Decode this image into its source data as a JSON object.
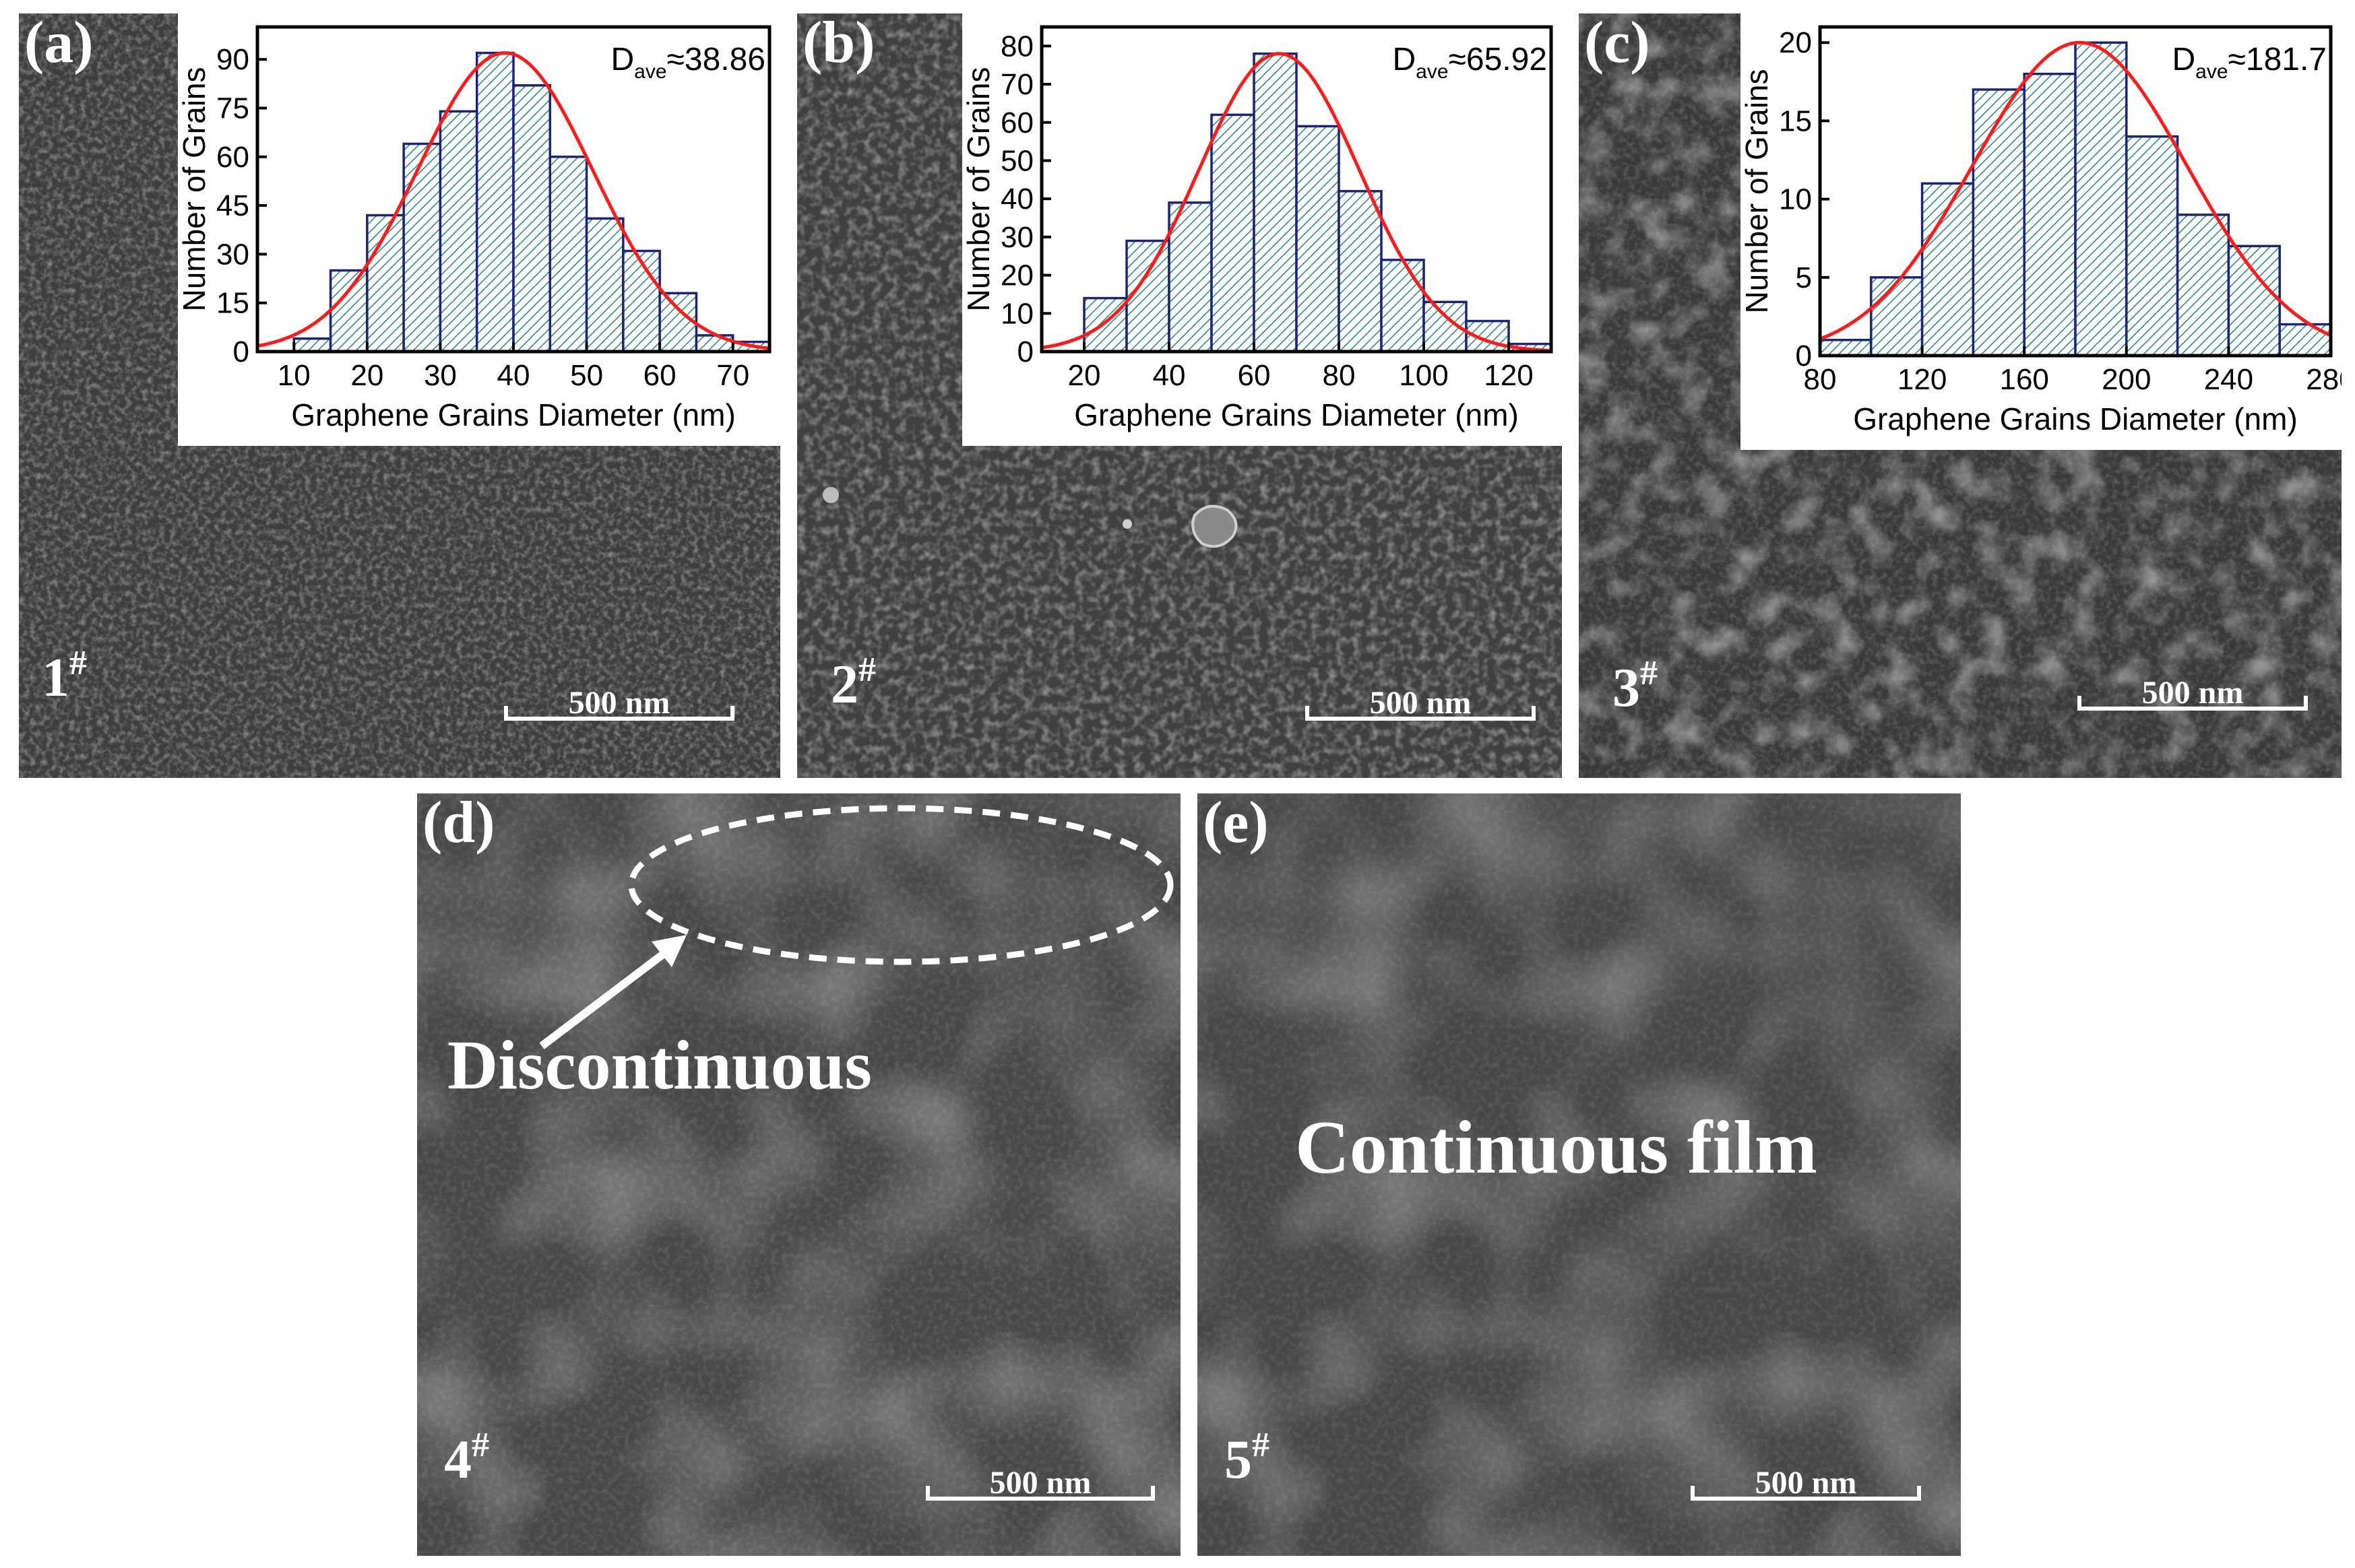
{
  "figure": {
    "panels": [
      {
        "letter": "(a)",
        "sample": "1",
        "sample_sup": "#",
        "scale_bar": "500 nm"
      },
      {
        "letter": "(b)",
        "sample": "2",
        "sample_sup": "#",
        "scale_bar": "500 nm"
      },
      {
        "letter": "(c)",
        "sample": "3",
        "sample_sup": "#",
        "scale_bar": "500 nm"
      },
      {
        "letter": "(d)",
        "sample": "4",
        "sample_sup": "#",
        "scale_bar": "500 nm",
        "annotation": "Discontinuous"
      },
      {
        "letter": "(e)",
        "sample": "5",
        "sample_sup": "#",
        "scale_bar": "500 nm",
        "annotation": "Continuous film"
      }
    ]
  },
  "colors": {
    "bar_edge": "#1a237e",
    "hatch": "#2a8c88",
    "fit_line": "#ff1a1a"
  },
  "chart_data": [
    {
      "type": "bar",
      "panel": "(a)",
      "title": "",
      "annotation_main": "D",
      "annotation_sub": "ave",
      "annotation_value": "≈38.86",
      "xlabel": "Graphene Grains Diameter (nm)",
      "ylabel": "Number of Grains",
      "xlim": [
        5,
        75
      ],
      "ylim": [
        0,
        100
      ],
      "xticks": [
        10,
        20,
        30,
        40,
        50,
        60,
        70
      ],
      "yticks": [
        0,
        15,
        30,
        45,
        60,
        75,
        90
      ],
      "bin_width": 5,
      "bin_starts": [
        10,
        15,
        20,
        25,
        30,
        35,
        40,
        45,
        50,
        55,
        60,
        65,
        70
      ],
      "values": [
        4,
        25,
        42,
        64,
        74,
        92,
        82,
        60,
        41,
        31,
        18,
        5,
        3
      ],
      "fit": {
        "type": "gaussian",
        "mean": 38.86,
        "sigma": 12,
        "amplitude": 92
      }
    },
    {
      "type": "bar",
      "panel": "(b)",
      "title": "",
      "annotation_main": "D",
      "annotation_sub": "ave",
      "annotation_value": "≈65.92",
      "xlabel": "Graphene Grains Diameter (nm)",
      "ylabel": "Number of Grains",
      "xlim": [
        10,
        130
      ],
      "ylim": [
        0,
        85
      ],
      "xticks": [
        20,
        40,
        60,
        80,
        100,
        120
      ],
      "yticks": [
        0,
        10,
        20,
        30,
        40,
        50,
        60,
        70,
        80
      ],
      "bin_width": 10,
      "bin_starts": [
        20,
        30,
        40,
        50,
        60,
        70,
        80,
        90,
        100,
        110,
        120
      ],
      "values": [
        14,
        29,
        39,
        62,
        78,
        59,
        42,
        24,
        13,
        8,
        2
      ],
      "fit": {
        "type": "gaussian",
        "mean": 65.92,
        "sigma": 19,
        "amplitude": 78
      }
    },
    {
      "type": "bar",
      "panel": "(c)",
      "title": "",
      "annotation_main": "D",
      "annotation_sub": "ave",
      "annotation_value": "≈181.7",
      "xlabel": "Graphene Grains Diameter (nm)",
      "ylabel": "Number of Grains",
      "xlim": [
        80,
        280
      ],
      "ylim": [
        0,
        21
      ],
      "xticks": [
        80,
        120,
        160,
        200,
        240,
        280
      ],
      "yticks": [
        0,
        5,
        10,
        15,
        20
      ],
      "bin_width": 20,
      "bin_starts": [
        80,
        100,
        120,
        140,
        160,
        180,
        200,
        220,
        240,
        260
      ],
      "values": [
        1,
        5,
        11,
        17,
        18,
        20,
        14,
        9,
        7,
        2
      ],
      "fit": {
        "type": "gaussian",
        "mean": 181.7,
        "sigma": 42,
        "amplitude": 20
      }
    }
  ]
}
